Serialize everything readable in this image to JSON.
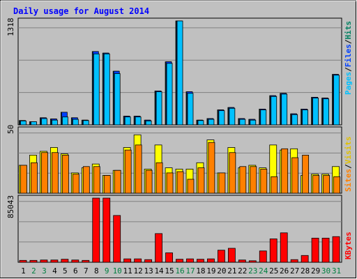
{
  "title": "Daily usage for August 2014",
  "colors": {
    "frame_bg": "#c0c0c0",
    "title": "#0000ff",
    "pages": "#00c0ff",
    "hits": "#008060",
    "files": "#0040ff",
    "visits": "#ffff00",
    "sites": "#ff8000",
    "kbytes": "#ff0000",
    "weekend_tick": "#008040",
    "weekday_tick": "#000000"
  },
  "chart_data": [
    {
      "type": "bar",
      "panel": "hits-files-pages",
      "ymax_label": "1318",
      "ylim": [
        0,
        1318
      ],
      "legend": [
        "Pages",
        "/",
        "Files",
        "/",
        "Hits"
      ],
      "categories": [
        "1",
        "2",
        "3",
        "4",
        "5",
        "6",
        "7",
        "8",
        "9",
        "10",
        "11",
        "12",
        "13",
        "14",
        "15",
        "16",
        "17",
        "18",
        "19",
        "20",
        "21",
        "22",
        "23",
        "24",
        "25",
        "26",
        "27",
        "28",
        "29",
        "30",
        "31"
      ],
      "series": [
        {
          "name": "Hits",
          "values": [
            55,
            40,
            90,
            75,
            160,
            90,
            60,
            930,
            910,
            680,
            110,
            110,
            60,
            430,
            800,
            1318,
            420,
            60,
            80,
            190,
            220,
            80,
            70,
            200,
            370,
            400,
            140,
            200,
            350,
            340,
            640
          ]
        },
        {
          "name": "Files",
          "values": [
            55,
            40,
            90,
            75,
            160,
            90,
            60,
            930,
            910,
            680,
            110,
            110,
            60,
            430,
            800,
            1318,
            420,
            60,
            80,
            190,
            220,
            80,
            70,
            200,
            370,
            400,
            140,
            200,
            350,
            340,
            640
          ]
        },
        {
          "name": "Pages",
          "values": [
            50,
            40,
            80,
            60,
            100,
            70,
            55,
            900,
            900,
            650,
            100,
            100,
            50,
            420,
            780,
            1318,
            400,
            55,
            70,
            180,
            210,
            70,
            60,
            190,
            360,
            390,
            130,
            190,
            340,
            330,
            630
          ]
        }
      ]
    },
    {
      "type": "bar",
      "panel": "visits-sites",
      "ymax_label": "50",
      "ylim": [
        0,
        50
      ],
      "legend": [
        "Sites",
        "/",
        "Visits"
      ],
      "categories": [
        "1",
        "2",
        "3",
        "4",
        "5",
        "6",
        "7",
        "8",
        "9",
        "10",
        "11",
        "12",
        "13",
        "14",
        "15",
        "16",
        "17",
        "18",
        "19",
        "20",
        "21",
        "22",
        "23",
        "24",
        "25",
        "26",
        "27",
        "28",
        "29",
        "30",
        "31"
      ],
      "series": [
        {
          "name": "Visits",
          "values": [
            22,
            30,
            33,
            36,
            31,
            16,
            20,
            23,
            14,
            18,
            36,
            46,
            19,
            38,
            20,
            19,
            19,
            24,
            42,
            16,
            36,
            20,
            22,
            20,
            38,
            34,
            35,
            14,
            15,
            15,
            21
          ]
        },
        {
          "name": "Sites",
          "values": [
            22,
            24,
            32,
            32,
            30,
            15,
            21,
            21,
            14,
            18,
            34,
            38,
            18,
            24,
            16,
            17,
            11,
            20,
            40,
            16,
            32,
            21,
            21,
            19,
            13,
            35,
            28,
            30,
            14,
            14,
            13
          ]
        }
      ]
    },
    {
      "type": "bar",
      "panel": "kbytes",
      "ymax_label": "85043",
      "ylim": [
        0,
        85043
      ],
      "legend": [
        "KBytes"
      ],
      "categories": [
        "1",
        "2",
        "3",
        "4",
        "5",
        "6",
        "7",
        "8",
        "9",
        "10",
        "11",
        "12",
        "13",
        "14",
        "15",
        "16",
        "17",
        "18",
        "19",
        "20",
        "21",
        "22",
        "23",
        "24",
        "25",
        "26",
        "27",
        "28",
        "29",
        "30",
        "31"
      ],
      "series": [
        {
          "name": "KBytes",
          "values": [
            2500,
            2500,
            3000,
            3000,
            4000,
            3000,
            2500,
            85043,
            85043,
            62000,
            4500,
            4500,
            3500,
            38000,
            12500,
            4000,
            4500,
            4000,
            4500,
            16000,
            18500,
            3000,
            2000,
            15000,
            31000,
            39000,
            3500,
            9000,
            32000,
            32000,
            34000
          ]
        }
      ]
    }
  ]
}
